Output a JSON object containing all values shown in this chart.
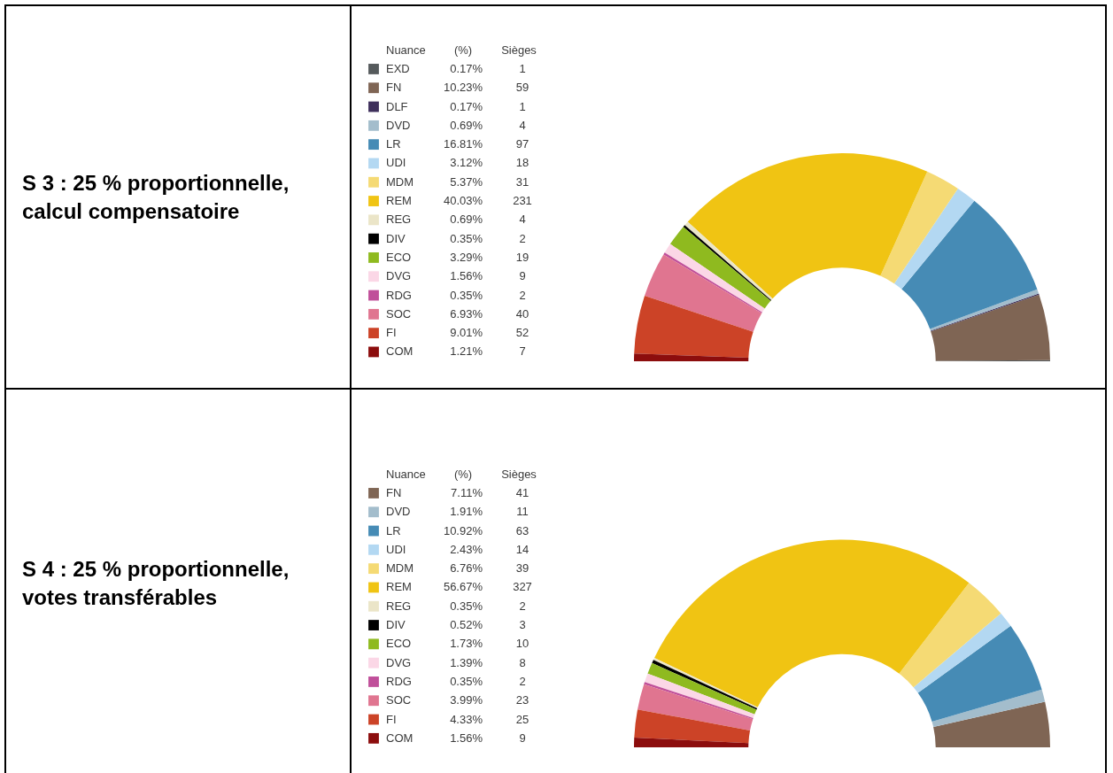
{
  "chart_data": [
    {
      "type": "donut",
      "title": "S 3 : 25 % proportionnelle, calcul compensatoire",
      "legend_title": "Nuance",
      "legend": "left",
      "data_labels": true,
      "annotations": [
        "(%)",
        "Sièges",
        {
          "text": "0.17%",
          "x": "EXD"
        },
        {
          "text": "10.23%",
          "x": "FN"
        },
        {
          "text": "0.17%",
          "x": "DLF"
        },
        {
          "text": "0.69%",
          "x": "DVD"
        },
        {
          "text": "16.81%",
          "x": "LR"
        },
        {
          "text": "3.12%",
          "x": "UDI"
        },
        {
          "text": "5.37%",
          "x": "MDM"
        },
        {
          "text": "40.03%",
          "x": "REM"
        },
        {
          "text": "0.69%",
          "x": "REG"
        },
        {
          "text": "0.35%",
          "x": "DIV"
        },
        {
          "text": "3.29%",
          "x": "ECO"
        },
        {
          "text": "1.56%",
          "x": "DVG"
        },
        {
          "text": "0.35%",
          "x": "RDG"
        },
        {
          "text": "6.93%",
          "x": "SOC"
        },
        {
          "text": "9.01%",
          "x": "FI"
        },
        {
          "text": "1.21%",
          "x": "COM"
        }
      ],
      "categories": [
        "EXD",
        "FN",
        "DLF",
        "DVD",
        "LR",
        "UDI",
        "MDM",
        "REM",
        "REG",
        "DIV",
        "ECO",
        "DVG",
        "RDG",
        "SOC",
        "FI",
        "COM"
      ],
      "values": [
        1,
        59,
        1,
        4,
        97,
        18,
        31,
        231,
        4,
        2,
        19,
        9,
        2,
        40,
        52,
        7
      ],
      "colors": [
        "#555a5c",
        "#7f6554",
        "#3e2f5b",
        "#a3bdcc",
        "#468bb5",
        "#b3d8f2",
        "#f5da74",
        "#f0c413",
        "#ebe5c8",
        "#000000",
        "#8fba1f",
        "#fbd7e6",
        "#c04f9a",
        "#e07590",
        "#cc4327",
        "#8c0d0d"
      ]
    },
    {
      "type": "donut",
      "title": "S 4 : 25 % proportionnelle, votes transférables",
      "legend_title": "Nuance",
      "legend": "left",
      "data_labels": true,
      "annotations": [
        "(%)",
        "Sièges",
        {
          "text": "7.11%",
          "x": "FN"
        },
        {
          "text": "1.91%",
          "x": "DVD"
        },
        {
          "text": "10.92%",
          "x": "LR"
        },
        {
          "text": "2.43%",
          "x": "UDI"
        },
        {
          "text": "6.76%",
          "x": "MDM"
        },
        {
          "text": "56.67%",
          "x": "REM"
        },
        {
          "text": "0.35%",
          "x": "REG"
        },
        {
          "text": "0.52%",
          "x": "DIV"
        },
        {
          "text": "1.73%",
          "x": "ECO"
        },
        {
          "text": "1.39%",
          "x": "DVG"
        },
        {
          "text": "0.35%",
          "x": "RDG"
        },
        {
          "text": "3.99%",
          "x": "SOC"
        },
        {
          "text": "4.33%",
          "x": "FI"
        },
        {
          "text": "1.56%",
          "x": "COM"
        }
      ],
      "categories": [
        "FN",
        "DVD",
        "LR",
        "UDI",
        "MDM",
        "REM",
        "REG",
        "DIV",
        "ECO",
        "DVG",
        "RDG",
        "SOC",
        "FI",
        "COM"
      ],
      "values": [
        41,
        11,
        63,
        14,
        39,
        327,
        2,
        3,
        10,
        8,
        2,
        23,
        25,
        9
      ],
      "colors": [
        "#7f6554",
        "#a3bdcc",
        "#468bb5",
        "#b3d8f2",
        "#f5da74",
        "#f0c413",
        "#ebe5c8",
        "#000000",
        "#8fba1f",
        "#fbd7e6",
        "#c04f9a",
        "#e07590",
        "#cc4327",
        "#8c0d0d"
      ]
    }
  ]
}
